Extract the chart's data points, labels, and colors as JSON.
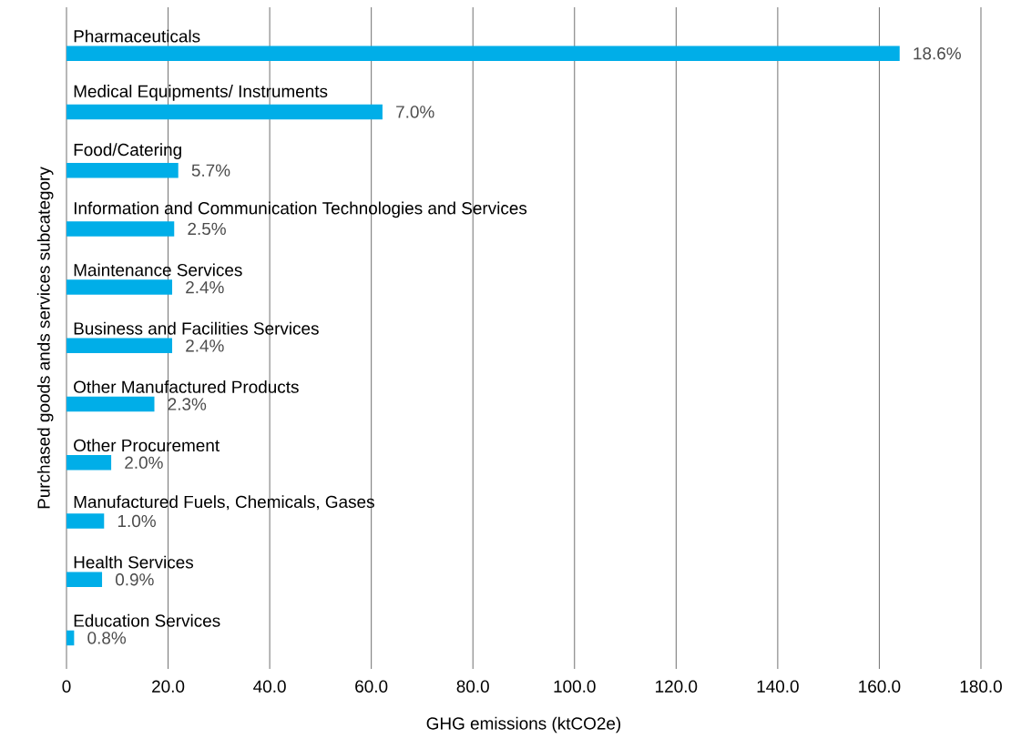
{
  "chart_data": {
    "type": "bar",
    "orientation": "horizontal",
    "xlabel": "GHG emissions (ktCO2e)",
    "ylabel": "Purchased goods ands services subcategory",
    "categories": [
      "Pharmaceuticals",
      "Medical Equipments/ Instruments",
      "Food/Catering",
      "Information and Communication Technologies and Services",
      "Maintenance Services",
      "Business and Facilities Services",
      "Other Manufactured Products",
      "Other Procurement",
      "Manufactured Fuels, Chemicals, Gases",
      "Health Services",
      "Education Services"
    ],
    "values": [
      164.0,
      62.2,
      22.0,
      21.2,
      20.8,
      20.8,
      17.3,
      8.8,
      7.4,
      7.0,
      1.5
    ],
    "annotations": [
      {
        "text": "18.6%",
        "x": 164.0,
        "y": "Pharmaceuticals"
      },
      {
        "text": "7.0%",
        "x": 62.2,
        "y": "Medical Equipments/ Instruments"
      },
      {
        "text": "5.7%",
        "x": 22.0,
        "y": "Food/Catering"
      },
      {
        "text": "2.5%",
        "x": 21.2,
        "y": "Information and Communication Technologies and Services"
      },
      {
        "text": "2.4%",
        "x": 20.8,
        "y": "Maintenance Services"
      },
      {
        "text": "2.4%",
        "x": 20.8,
        "y": "Business and Facilities Services"
      },
      {
        "text": "2.3%",
        "x": 17.3,
        "y": "Other Manufactured Products"
      },
      {
        "text": "2.0%",
        "x": 8.8,
        "y": "Other Procurement"
      },
      {
        "text": "1.0%",
        "x": 7.4,
        "y": "Manufactured Fuels, Chemicals, Gases"
      },
      {
        "text": "0.9%",
        "x": 7.0,
        "y": "Health Services"
      },
      {
        "text": "0.8%",
        "x": 1.5,
        "y": "Education Services"
      }
    ],
    "color": "#00aee8",
    "xlim": [
      0,
      180
    ],
    "xticks": [
      0,
      {
        "value": 20,
        "label": "20.0"
      },
      {
        "value": 40,
        "label": "40.0"
      },
      {
        "value": 60,
        "label": "60.0"
      },
      {
        "value": 80,
        "label": "80.0"
      },
      {
        "value": 100,
        "label": "100.0"
      },
      {
        "value": 120,
        "label": "120.0"
      },
      {
        "value": 140,
        "label": "140.0"
      },
      {
        "value": 160,
        "label": "160.0"
      },
      {
        "value": 180,
        "label": "180.0"
      }
    ],
    "grid": "x"
  }
}
